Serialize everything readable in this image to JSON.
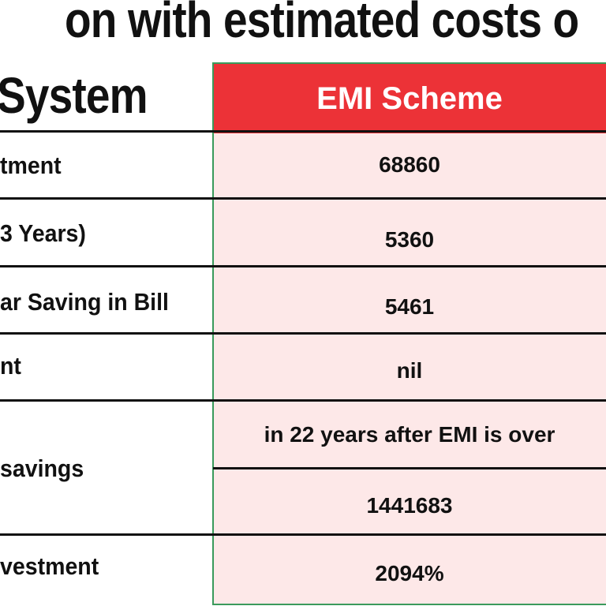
{
  "title": {
    "line1": "on with estimated costs o",
    "line2": "System"
  },
  "table": {
    "header": "EMI Scheme",
    "rows": [
      {
        "label": "tment",
        "value": "68860"
      },
      {
        "label": "3 Years)",
        "value": "5360"
      },
      {
        "label": "ar Saving in Bill",
        "value": "5461"
      },
      {
        "label": "nt",
        "value": "nil"
      },
      {
        "label": "savings",
        "value_note": "in 22 years after EMI is over",
        "value": "1441683"
      },
      {
        "label": "vestment",
        "value": "2094%"
      }
    ]
  },
  "colors": {
    "header_bg": "#ec3237",
    "column_bg": "#fde8e8",
    "column_border": "#3a9a5b",
    "rule": "#111111"
  }
}
